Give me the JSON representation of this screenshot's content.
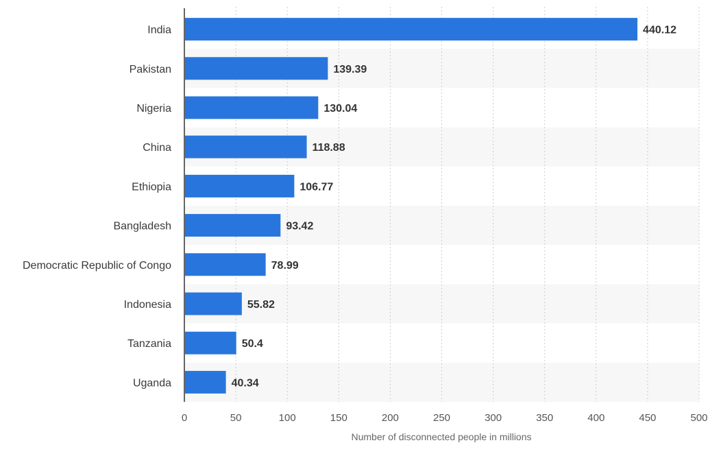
{
  "chart_data": {
    "type": "bar",
    "orientation": "horizontal",
    "categories": [
      "India",
      "Pakistan",
      "Nigeria",
      "China",
      "Ethiopia",
      "Bangladesh",
      "Democratic Republic of Congo",
      "Indonesia",
      "Tanzania",
      "Uganda"
    ],
    "values": [
      440.12,
      139.39,
      130.04,
      118.88,
      106.77,
      93.42,
      78.99,
      55.82,
      50.4,
      40.34
    ],
    "value_labels": [
      "440.12",
      "139.39",
      "130.04",
      "118.88",
      "106.77",
      "93.42",
      "78.99",
      "55.82",
      "50.4",
      "40.34"
    ],
    "xlabel": "Number of disconnected people in millions",
    "xlim": [
      0,
      500
    ],
    "xticks": [
      0,
      50,
      100,
      150,
      200,
      250,
      300,
      350,
      400,
      450,
      500
    ],
    "grid": true,
    "legend": "none",
    "colors": {
      "bar": "#2876dd",
      "band": "#f7f7f7",
      "grid": "#cccccc",
      "axis": "#333333"
    }
  }
}
